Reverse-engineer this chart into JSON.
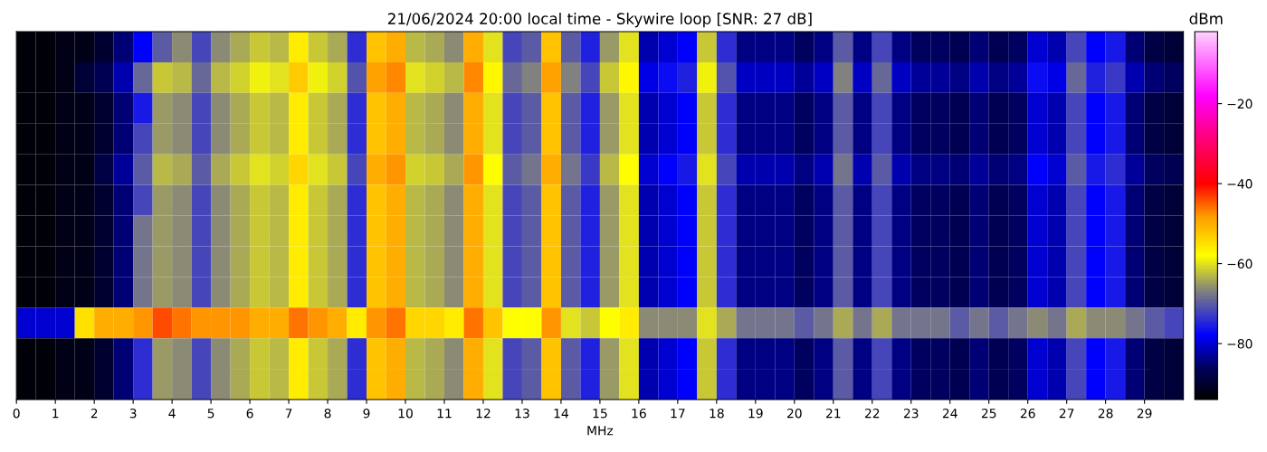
{
  "chart_data": {
    "type": "heatmap",
    "title": "21/06/2024 20:00 local time - Skywire loop [SNR: 27 dB]",
    "xlabel": "MHz",
    "clabel": "dBm",
    "x": [
      0.25,
      0.75,
      1.25,
      1.75,
      2.25,
      2.75,
      3.25,
      3.75,
      4.25,
      4.75,
      5.25,
      5.75,
      6.25,
      6.75,
      7.25,
      7.75,
      8.25,
      8.75,
      9.25,
      9.75,
      10.25,
      10.75,
      11.25,
      11.75,
      12.25,
      12.75,
      13.25,
      13.75,
      14.25,
      14.75,
      15.25,
      15.75,
      16.25,
      16.75,
      17.25,
      17.75,
      18.25,
      18.75,
      19.25,
      19.75,
      20.25,
      20.75,
      21.25,
      21.75,
      22.25,
      22.75,
      23.25,
      23.75,
      24.25,
      24.75,
      25.25,
      25.75,
      26.25,
      26.75,
      27.25,
      27.75,
      28.25,
      28.75,
      29.25,
      29.75
    ],
    "y_categories": [
      null,
      null,
      null,
      null,
      null,
      null,
      null,
      null,
      null,
      null,
      null,
      null
    ],
    "xlim": [
      0,
      30
    ],
    "xticks": [
      0,
      1,
      2,
      3,
      4,
      5,
      6,
      7,
      8,
      9,
      10,
      11,
      12,
      13,
      14,
      15,
      16,
      17,
      18,
      19,
      20,
      21,
      22,
      23,
      24,
      25,
      26,
      27,
      28,
      29
    ],
    "tick_labels": "x",
    "clim": [
      -94,
      -2
    ],
    "cticks": [
      -80,
      -60,
      -40,
      -20
    ],
    "cells": [
      [
        -93,
        -93,
        -92,
        -92,
        -90,
        -85,
        -78,
        -70,
        -66,
        -72,
        -66,
        -64,
        -62,
        -63,
        -56,
        -62,
        -64,
        -74,
        -52,
        -50,
        -63,
        -64,
        -66,
        -50,
        -60,
        -72,
        -70,
        -52,
        -70,
        -75,
        -65,
        -60,
        -82,
        -80,
        -78,
        -62,
        -74,
        -84,
        -84,
        -84,
        -86,
        -84,
        -70,
        -84,
        -72,
        -84,
        -86,
        -86,
        -87,
        -85,
        -87,
        -86,
        -80,
        -82,
        -72,
        -78,
        -76,
        -85,
        -88,
        -89
      ],
      [
        -93,
        -93,
        -92,
        -89,
        -87,
        -82,
        -69,
        -62,
        -63,
        -69,
        -63,
        -61,
        -59,
        -60,
        -53,
        -59,
        -61,
        -71,
        -49,
        -47,
        -60,
        -61,
        -63,
        -47,
        -57,
        -69,
        -67,
        -49,
        -67,
        -72,
        -62,
        -57,
        -79,
        -77,
        -75,
        -59,
        -71,
        -81,
        -81,
        -81,
        -83,
        -81,
        -67,
        -81,
        -69,
        -81,
        -83,
        -83,
        -84,
        -82,
        -84,
        -83,
        -77,
        -79,
        -69,
        -75,
        -73,
        -82,
        -85,
        -86
      ],
      [
        -93,
        -93,
        -92,
        -92,
        -90,
        -85,
        -76,
        -65,
        -66,
        -72,
        -66,
        -64,
        -62,
        -63,
        -56,
        -62,
        -64,
        -74,
        -52,
        -50,
        -63,
        -64,
        -66,
        -50,
        -60,
        -72,
        -70,
        -52,
        -70,
        -75,
        -65,
        -60,
        -82,
        -80,
        -78,
        -62,
        -74,
        -84,
        -84,
        -84,
        -86,
        -84,
        -70,
        -84,
        -72,
        -84,
        -86,
        -86,
        -87,
        -85,
        -87,
        -86,
        -80,
        -82,
        -72,
        -78,
        -76,
        -85,
        -88,
        -89
      ],
      [
        -93,
        -93,
        -92,
        -92,
        -90,
        -85,
        -72,
        -65,
        -66,
        -72,
        -66,
        -64,
        -62,
        -63,
        -56,
        -62,
        -64,
        -74,
        -52,
        -50,
        -63,
        -64,
        -66,
        -50,
        -60,
        -72,
        -70,
        -52,
        -70,
        -75,
        -65,
        -60,
        -82,
        -80,
        -78,
        -62,
        -74,
        -84,
        -84,
        -84,
        -86,
        -84,
        -70,
        -84,
        -72,
        -84,
        -86,
        -86,
        -87,
        -85,
        -87,
        -86,
        -80,
        -82,
        -72,
        -78,
        -76,
        -85,
        -88,
        -89
      ],
      [
        -93,
        -93,
        -92,
        -92,
        -88,
        -83,
        -70,
        -63,
        -64,
        -70,
        -64,
        -62,
        -60,
        -61,
        -54,
        -60,
        -62,
        -72,
        -50,
        -48,
        -61,
        -62,
        -64,
        -48,
        -58,
        -70,
        -68,
        -50,
        -68,
        -73,
        -63,
        -58,
        -80,
        -78,
        -76,
        -60,
        -72,
        -82,
        -82,
        -82,
        -84,
        -82,
        -68,
        -82,
        -70,
        -82,
        -84,
        -84,
        -85,
        -83,
        -85,
        -84,
        -78,
        -80,
        -70,
        -76,
        -74,
        -83,
        -86,
        -87
      ],
      [
        -93,
        -93,
        -92,
        -92,
        -90,
        -85,
        -72,
        -65,
        -66,
        -72,
        -66,
        -64,
        -62,
        -63,
        -56,
        -62,
        -64,
        -74,
        -52,
        -50,
        -63,
        -64,
        -66,
        -50,
        -60,
        -72,
        -70,
        -52,
        -70,
        -75,
        -65,
        -60,
        -82,
        -80,
        -78,
        -62,
        -74,
        -84,
        -84,
        -84,
        -86,
        -84,
        -70,
        -84,
        -72,
        -84,
        -86,
        -86,
        -87,
        -85,
        -87,
        -86,
        -80,
        -82,
        -72,
        -78,
        -76,
        -85,
        -88,
        -89
      ],
      [
        -93,
        -93,
        -92,
        -92,
        -90,
        -85,
        -68,
        -65,
        -66,
        -72,
        -66,
        -64,
        -62,
        -63,
        -56,
        -62,
        -64,
        -74,
        -52,
        -50,
        -63,
        -64,
        -66,
        -50,
        -60,
        -72,
        -70,
        -52,
        -70,
        -75,
        -65,
        -60,
        -82,
        -80,
        -78,
        -62,
        -74,
        -84,
        -84,
        -84,
        -86,
        -84,
        -70,
        -84,
        -72,
        -84,
        -86,
        -86,
        -87,
        -85,
        -87,
        -86,
        -80,
        -82,
        -72,
        -78,
        -76,
        -85,
        -88,
        -89
      ],
      [
        -93,
        -93,
        -92,
        -92,
        -90,
        -85,
        -68,
        -65,
        -66,
        -72,
        -66,
        -64,
        -62,
        -63,
        -56,
        -62,
        -64,
        -74,
        -52,
        -50,
        -63,
        -64,
        -66,
        -50,
        -60,
        -72,
        -70,
        -52,
        -70,
        -75,
        -65,
        -60,
        -82,
        -80,
        -78,
        -62,
        -74,
        -84,
        -84,
        -84,
        -86,
        -84,
        -70,
        -84,
        -72,
        -84,
        -86,
        -86,
        -87,
        -85,
        -87,
        -86,
        -80,
        -82,
        -72,
        -78,
        -76,
        -85,
        -88,
        -89
      ],
      [
        -93,
        -93,
        -92,
        -92,
        -90,
        -85,
        -68,
        -65,
        -66,
        -72,
        -66,
        -64,
        -62,
        -63,
        -56,
        -62,
        -64,
        -74,
        -52,
        -50,
        -63,
        -64,
        -66,
        -50,
        -60,
        -72,
        -70,
        -52,
        -70,
        -75,
        -65,
        -60,
        -82,
        -80,
        -78,
        -62,
        -74,
        -84,
        -84,
        -84,
        -86,
        -84,
        -70,
        -84,
        -72,
        -84,
        -86,
        -86,
        -87,
        -85,
        -87,
        -86,
        -80,
        -82,
        -72,
        -78,
        -76,
        -85,
        -88,
        -89
      ],
      [
        -80,
        -80,
        -80,
        -55,
        -50,
        -50,
        -48,
        -44,
        -46,
        -48,
        -48,
        -48,
        -50,
        -50,
        -46,
        -48,
        -50,
        -56,
        -48,
        -46,
        -54,
        -54,
        -56,
        -46,
        -52,
        -58,
        -58,
        -48,
        -60,
        -62,
        -58,
        -56,
        -66,
        -66,
        -66,
        -60,
        -64,
        -68,
        -68,
        -68,
        -70,
        -68,
        -64,
        -68,
        -64,
        -68,
        -68,
        -68,
        -70,
        -68,
        -70,
        -68,
        -66,
        -68,
        -64,
        -66,
        -66,
        -68,
        -70,
        -72
      ],
      [
        -93,
        -93,
        -92,
        -92,
        -90,
        -85,
        -74,
        -65,
        -66,
        -72,
        -66,
        -64,
        -62,
        -63,
        -56,
        -62,
        -64,
        -74,
        -52,
        -50,
        -63,
        -64,
        -66,
        -50,
        -60,
        -72,
        -70,
        -52,
        -70,
        -75,
        -65,
        -60,
        -82,
        -80,
        -78,
        -62,
        -74,
        -84,
        -84,
        -84,
        -86,
        -84,
        -70,
        -84,
        -72,
        -84,
        -86,
        -86,
        -87,
        -85,
        -87,
        -86,
        -80,
        -82,
        -72,
        -78,
        -76,
        -85,
        -88,
        -89
      ],
      [
        -93,
        -93,
        -92,
        -92,
        -90,
        -85,
        -74,
        -65,
        -66,
        -72,
        -66,
        -64,
        -62,
        -63,
        -56,
        -62,
        -64,
        -74,
        -52,
        -50,
        -63,
        -64,
        -66,
        -50,
        -60,
        -72,
        -70,
        -52,
        -70,
        -75,
        -65,
        -60,
        -82,
        -80,
        -78,
        -62,
        -74,
        -84,
        -84,
        -84,
        -86,
        -84,
        -70,
        -84,
        -72,
        -84,
        -86,
        -86,
        -87,
        -85,
        -87,
        -86,
        -80,
        -82,
        -72,
        -78,
        -76,
        -85,
        -88,
        -89
      ]
    ]
  }
}
